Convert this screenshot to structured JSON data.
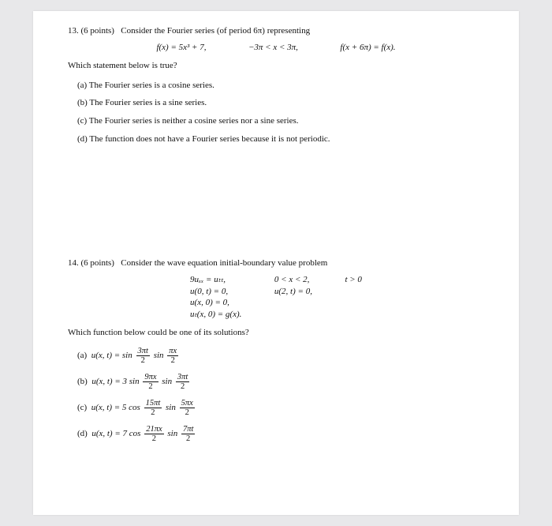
{
  "page": {
    "background_color": "#e8e8ea",
    "paper_color": "#ffffff",
    "text_color": "#111111",
    "base_font_size_pt": 11,
    "font_family": "Times New Roman"
  },
  "q13": {
    "number": "13.",
    "points": "(6 points)",
    "lead": "Consider the Fourier series (of period 6π) representing",
    "eq": {
      "fdef": "f(x) = 5x³ + 7,",
      "domain": "−3π < x < 3π,",
      "period": "f(x + 6π) = f(x)."
    },
    "sub": "Which statement below is true?",
    "a": "(a)  The Fourier series is a cosine series.",
    "b": "(b)  The Fourier series is a sine series.",
    "c": "(c)  The Fourier series is neither a cosine series nor a sine series.",
    "d": "(d)  The function does not have a Fourier series because it is not periodic."
  },
  "q14": {
    "number": "14.",
    "points": "(6 points)",
    "lead": "Consider the wave equation initial-boundary value problem",
    "eqs": {
      "l1": "9uₓₓ = uₜₜ,",
      "l2": "u(0, t) = 0,",
      "l3": "u(x, 0) = 0,",
      "l4": "uₜ(x, 0) = g(x).",
      "r1": "0 < x < 2,",
      "r2": "u(2, t) = 0,",
      "t1": "t > 0"
    },
    "sub": "Which function below could be one of its solutions?",
    "opts": {
      "a": {
        "label": "(a)",
        "pre": "u(x, t) = sin",
        "num1": "3πt",
        "den1": "2",
        "mid": "sin",
        "num2": "πx",
        "den2": "2"
      },
      "b": {
        "label": "(b)",
        "pre": "u(x, t) = 3 sin",
        "num1": "9πx",
        "den1": "2",
        "mid": "sin",
        "num2": "3πt",
        "den2": "2"
      },
      "c": {
        "label": "(c)",
        "pre": "u(x, t) = 5 cos",
        "num1": "15πt",
        "den1": "2",
        "mid": "sin",
        "num2": "5πx",
        "den2": "2"
      },
      "d": {
        "label": "(d)",
        "pre": "u(x, t) = 7 cos",
        "num1": "21πx",
        "den1": "2",
        "mid": "sin",
        "num2": "7πt",
        "den2": "2"
      }
    }
  }
}
